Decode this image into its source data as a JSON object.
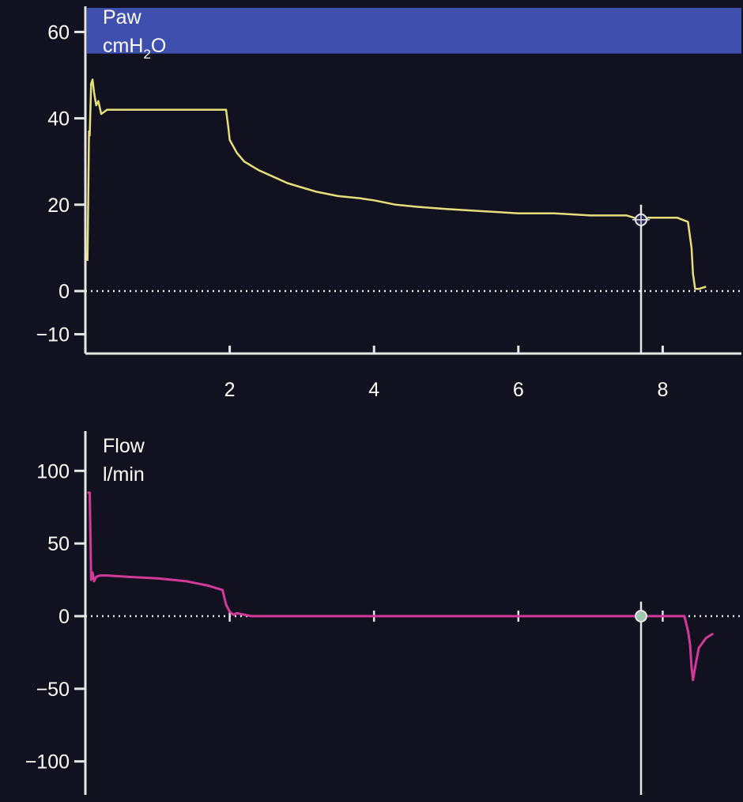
{
  "colors": {
    "background": "#12111f",
    "axis": "#e6e6e6",
    "label": "#ffffff",
    "pressure_trace": "#e6e07a",
    "flow_trace": "#d23a9a",
    "alarm_band": "#3e4fae",
    "cursor": "#e6e6e6"
  },
  "chart_data": [
    {
      "type": "line",
      "label_line1": "Paw",
      "label_line2": "cmH",
      "label_sub": "2",
      "label_line2_tail": "O",
      "xlim": [
        0,
        9.0
      ],
      "ylim": [
        -14,
        67
      ],
      "yticks": [
        60,
        40,
        20,
        0,
        -10
      ],
      "ytick_labels": [
        "60",
        "40",
        "20",
        "0",
        "−10"
      ],
      "xticks": [
        2,
        4,
        6,
        8
      ],
      "xtick_labels": [
        "2",
        "4",
        "6",
        "8"
      ],
      "alarm_band": [
        55,
        66
      ],
      "zero_dotted": true,
      "cursor_x": 7.7,
      "series": [
        {
          "x": [
            0.03,
            0.05,
            0.06,
            0.08,
            0.1,
            0.12,
            0.15,
            0.18,
            0.22,
            0.3,
            0.5,
            1.0,
            1.5,
            1.95,
            1.98,
            2.0,
            2.1,
            2.2,
            2.4,
            2.6,
            2.8,
            3.0,
            3.2,
            3.5,
            3.8,
            4.0,
            4.3,
            4.6,
            5.0,
            5.5,
            6.0,
            6.5,
            7.0,
            7.5,
            7.7,
            7.8,
            8.0,
            8.2,
            8.35,
            8.4,
            8.42,
            8.45,
            8.5,
            8.6
          ],
          "y": [
            7,
            37,
            36,
            48,
            49,
            46,
            43,
            44,
            41,
            42,
            42,
            42,
            42,
            42,
            38,
            35,
            32,
            30,
            28,
            26.5,
            25,
            24,
            23,
            22,
            21.5,
            21,
            20,
            19.5,
            19,
            18.5,
            18,
            18,
            17.5,
            17.5,
            16.5,
            17,
            17,
            17,
            16,
            10,
            4,
            0.5,
            0.5,
            1
          ]
        }
      ]
    },
    {
      "type": "line",
      "label_line1": "Flow",
      "label_line2": "l/min",
      "xlim": [
        0,
        9.0
      ],
      "ylim": [
        -125,
        127
      ],
      "yticks": [
        100,
        50,
        0,
        -50,
        -100
      ],
      "ytick_labels": [
        "100",
        "50",
        "0",
        "−50",
        "−100"
      ],
      "xticks": [
        2,
        4,
        6,
        8
      ],
      "zero_dotted": true,
      "cursor_x": 7.7,
      "series": [
        {
          "x": [
            0.03,
            0.06,
            0.08,
            0.1,
            0.12,
            0.15,
            0.2,
            0.3,
            0.6,
            1.0,
            1.4,
            1.7,
            1.9,
            1.95,
            2.0,
            2.05,
            2.1,
            2.3,
            3.0,
            5.0,
            7.0,
            7.7,
            8.0,
            8.3,
            8.35,
            8.38,
            8.4,
            8.42,
            8.45,
            8.5,
            8.6,
            8.7
          ],
          "y": [
            85,
            85,
            25,
            30,
            24,
            27,
            28,
            28,
            27,
            26,
            24,
            21,
            18,
            8,
            3,
            1,
            2,
            0,
            0,
            0,
            0,
            0,
            0,
            0,
            -10,
            -20,
            -35,
            -44,
            -35,
            -22,
            -15,
            -12
          ]
        }
      ]
    }
  ]
}
